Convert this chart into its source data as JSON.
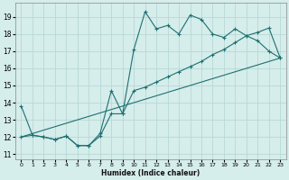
{
  "xlabel": "Humidex (Indice chaleur)",
  "background_color": "#d5edeb",
  "grid_color": "#b8d8d5",
  "line_color": "#1e7070",
  "xlim": [
    -0.5,
    23.5
  ],
  "ylim": [
    10.7,
    19.8
  ],
  "xticks": [
    0,
    1,
    2,
    3,
    4,
    5,
    6,
    7,
    8,
    9,
    10,
    11,
    12,
    13,
    14,
    15,
    16,
    17,
    18,
    19,
    20,
    21,
    22,
    23
  ],
  "yticks": [
    11,
    12,
    13,
    14,
    15,
    16,
    17,
    18,
    19
  ],
  "line1_x": [
    0,
    1,
    2,
    3,
    4,
    5,
    6,
    7,
    8,
    9,
    10,
    11,
    12,
    13,
    14,
    15,
    16,
    17,
    18,
    19,
    20,
    21,
    22,
    23
  ],
  "line1_y": [
    13.8,
    12.1,
    12.0,
    11.85,
    12.05,
    11.5,
    11.5,
    12.05,
    13.35,
    13.35,
    17.1,
    19.3,
    18.3,
    18.5,
    18.0,
    19.1,
    18.85,
    18.0,
    17.8,
    18.3,
    17.9,
    17.6,
    17.0,
    16.6
  ],
  "line2_x": [
    0,
    1,
    2,
    3,
    4,
    5,
    6,
    7,
    8,
    9,
    10,
    11,
    12,
    13,
    14,
    15,
    16,
    17,
    18,
    19,
    20,
    21,
    22,
    23
  ],
  "line2_y": [
    12.0,
    12.1,
    12.0,
    11.85,
    12.05,
    11.5,
    11.5,
    12.2,
    14.7,
    13.35,
    14.7,
    14.9,
    15.2,
    15.5,
    15.8,
    16.1,
    16.4,
    16.8,
    17.1,
    17.5,
    17.9,
    18.1,
    18.35,
    16.6
  ],
  "line3_x": [
    0,
    23
  ],
  "line3_y": [
    12.0,
    16.6
  ]
}
